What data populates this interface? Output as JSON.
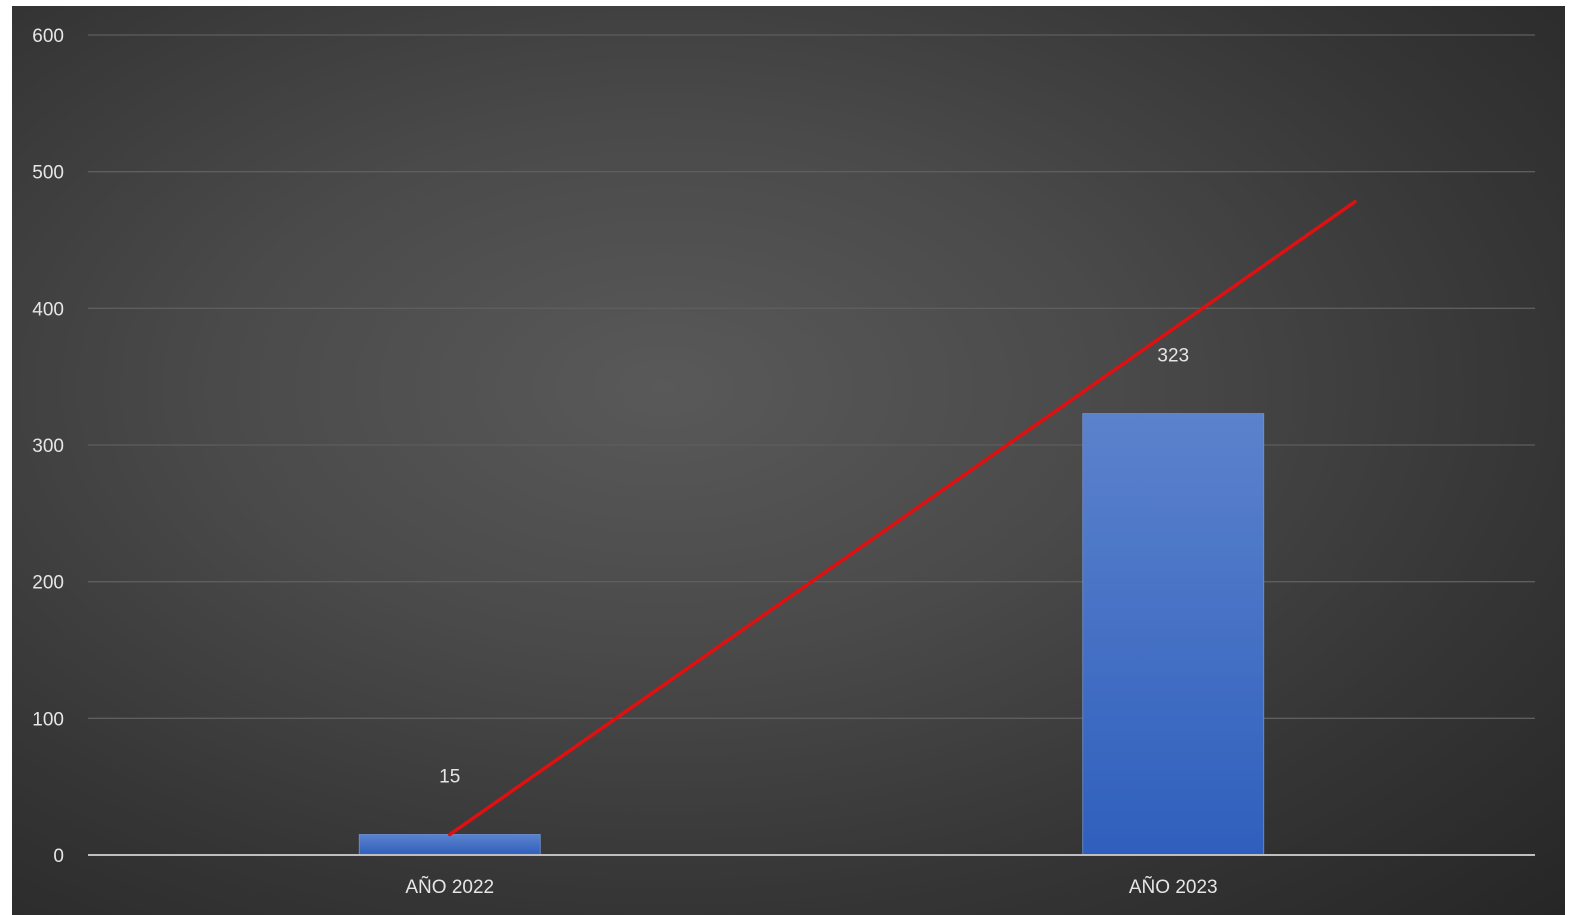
{
  "chart_data": {
    "type": "bar",
    "categories": [
      "AÑO 2022",
      "AÑO 2023"
    ],
    "series": [
      {
        "values": [
          15,
          323
        ]
      }
    ],
    "data_labels": [
      "15",
      "323"
    ],
    "y_ticks": [
      "0",
      "100",
      "200",
      "300",
      "400",
      "500",
      "600"
    ],
    "ylim": [
      0,
      600
    ],
    "grid": true,
    "legend": "none",
    "trendline": {
      "type": "linear",
      "from": {
        "category": "AÑO 2022",
        "value": 15
      },
      "to_value": 478,
      "color": "#e01010"
    },
    "colors": {
      "bar_top": "#5b82cc",
      "bar_bottom": "#2f5fbd",
      "gridline": "#5e5e5e",
      "axis": "#bfbfbf",
      "text": "#e6e6e6"
    }
  }
}
